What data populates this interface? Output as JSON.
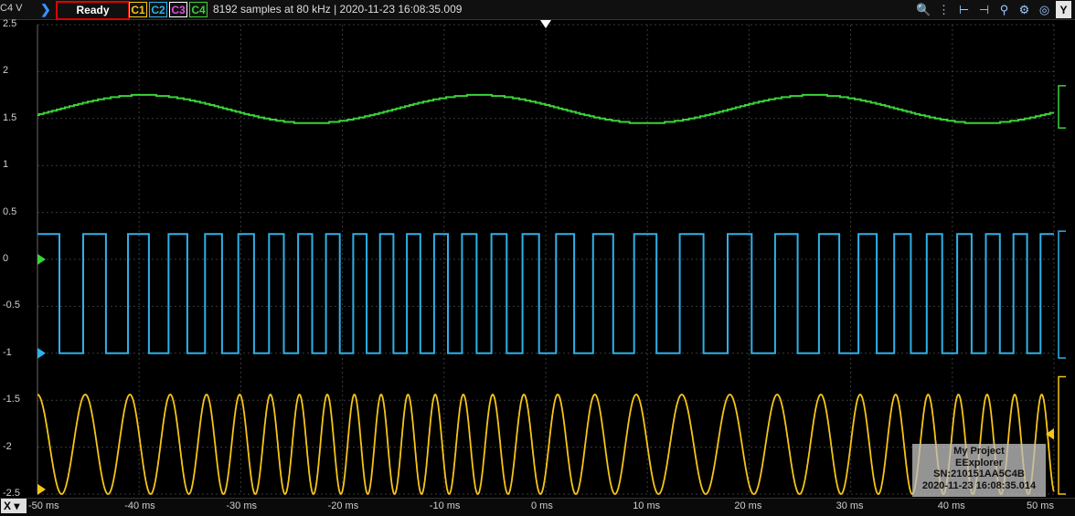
{
  "toolbar": {
    "y_axis_label": "C4 V",
    "status": "Ready",
    "channels": [
      "C1",
      "C2",
      "C3",
      "C4"
    ],
    "acquisition_info": "8192 samples at 80 kHz | 2020-11-23 16:08:35.009",
    "icons": [
      "zoom-in-icon",
      "cursor-icon",
      "measure-icon",
      "measure-alt-icon",
      "zoom-icon",
      "settings-icon",
      "target-icon"
    ],
    "y_button": "Y"
  },
  "axes": {
    "y_ticks": [
      "2.5",
      "2",
      "1.5",
      "1",
      "0.5",
      "0",
      "-0.5",
      "-1",
      "-1.5",
      "-2",
      "-2.5"
    ],
    "x_ticks": [
      "-50 ms",
      "-40 ms",
      "-30 ms",
      "-20 ms",
      "-10 ms",
      "0 ms",
      "10 ms",
      "20 ms",
      "30 ms",
      "40 ms",
      "50 ms"
    ],
    "x_selector": "X"
  },
  "watermark": {
    "project": "My Project",
    "app": "EExplorer",
    "serial": "SN:210151AA5C4B",
    "timestamp": "2020-11-23 16:08:35.014"
  },
  "chart_data": {
    "type": "line",
    "xlabel": "",
    "ylabel": "C4 V",
    "xlim": [
      -50,
      50
    ],
    "ylim": [
      -2.5,
      2.5
    ],
    "grid": true,
    "series": [
      {
        "name": "C4",
        "color": "#3ad33a",
        "kind": "staircase-sine",
        "offset": 1.6,
        "amplitude": 0.15,
        "period_ms": 33,
        "value_at_minus50": 1.52
      },
      {
        "name": "C2",
        "color": "#2fb0e8",
        "kind": "square-wave-fm",
        "high": 0.27,
        "low": -1.0
      },
      {
        "name": "C1",
        "color": "#f5c518",
        "kind": "sine-fm",
        "offset": -1.97,
        "amplitude": 0.53
      }
    ]
  }
}
